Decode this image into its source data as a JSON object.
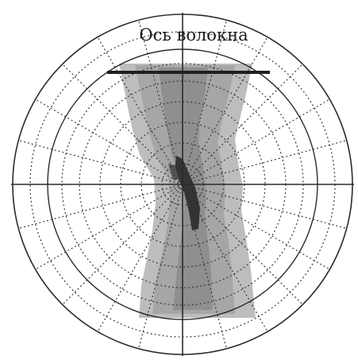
{
  "diagram": {
    "fiber_axis_label": "Ось волокна",
    "colors": {
      "background": "#ffffff",
      "line": "#2b2b2b",
      "grid": "#3a3a3a",
      "band_outer": "#b9b9b9",
      "band_mid": "#a2a2a2",
      "band_inner": "#8c8c8c",
      "core": "#333333"
    }
  }
}
